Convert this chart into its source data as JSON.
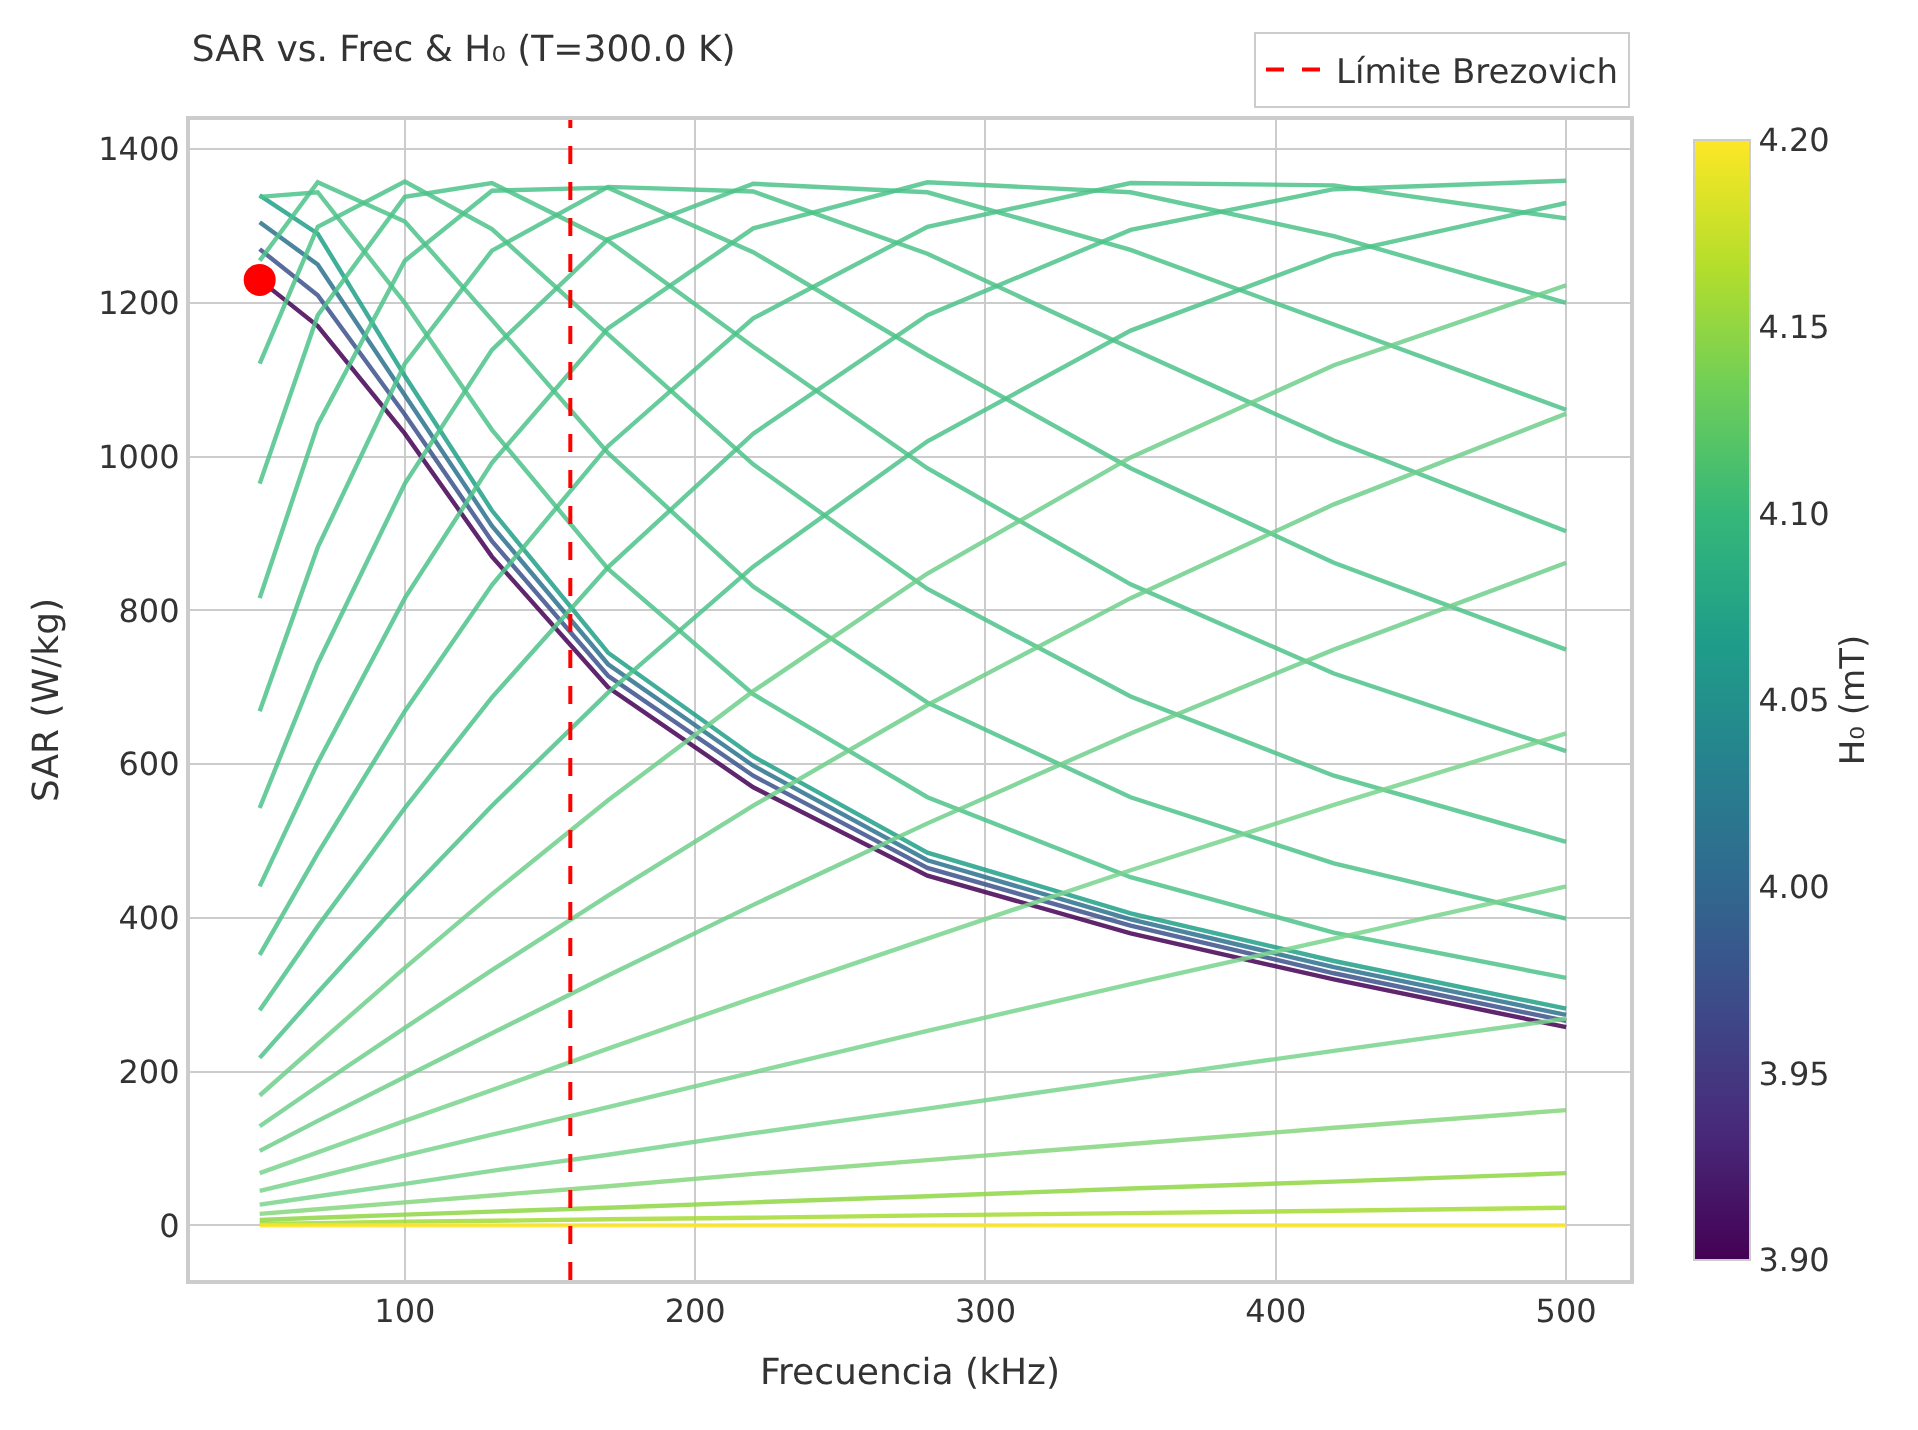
{
  "chart_data": {
    "type": "line",
    "title": "SAR vs. Frec & H₀ (T=300.0 K)",
    "xlabel": "Frecuencia (kHz)",
    "ylabel": "SAR (W/kg)",
    "clabel": "H₀ (mT)",
    "x": [
      50,
      70,
      100,
      130,
      170,
      220,
      280,
      350,
      420,
      500
    ],
    "xlim": [
      26,
      522
    ],
    "xticks": [
      100,
      200,
      300,
      400,
      500
    ],
    "ylim": [
      -71,
      1438
    ],
    "yticks": [
      0,
      200,
      400,
      600,
      800,
      1000,
      1200,
      1400
    ],
    "clim": [
      3.9,
      4.2
    ],
    "cticks": [
      {
        "value": 3.9,
        "label": "3.90"
      },
      3.95,
      {
        "value": 4.0,
        "label": "4.00"
      },
      4.05,
      {
        "value": 4.1,
        "label": "4.10"
      },
      4.15,
      {
        "value": 4.2,
        "label": "4.20"
      }
    ],
    "grid": true,
    "legend": "top right",
    "marker": "none",
    "line_style": "solid",
    "ref_lines": [
      {
        "axis": "x",
        "value": 157,
        "label": "Límite Brezovich",
        "color": "#ff0000",
        "line_style": "dashed"
      }
    ],
    "series": [
      {
        "color": "#1fa088",
        "values": [
          1340,
          1290,
          1105,
          930,
          745,
          610,
          485,
          406,
          344,
          282
        ]
      },
      {
        "color": "#2c728e",
        "values": [
          1305,
          1250,
          1080,
          910,
          730,
          598,
          475,
          398,
          336,
          274
        ]
      },
      {
        "color": "#3b528b",
        "values": [
          1270,
          1210,
          1055,
          890,
          715,
          585,
          465,
          390,
          328,
          266
        ]
      },
      {
        "color": "#440154",
        "values": [
          1230,
          1170,
          1030,
          870,
          700,
          570,
          455,
          380,
          320,
          258
        ]
      },
      {
        "color": "#4ec38a",
        "values": [
          1338,
          1344,
          1200,
          1035,
          854,
          691,
          557,
          453,
          381,
          322
        ]
      },
      {
        "color": "#4ec38a",
        "values": [
          1255,
          1357,
          1306,
          1178,
          1005,
          831,
          680,
          557,
          471,
          399
        ]
      },
      {
        "color": "#4ec38a",
        "values": [
          1121,
          1299,
          1358,
          1296,
          1159,
          990,
          828,
          688,
          585,
          499
        ]
      },
      {
        "color": "#4ec38a",
        "values": [
          965,
          1184,
          1338,
          1356,
          1281,
          1143,
          985,
          834,
          718,
          617
        ]
      },
      {
        "color": "#4ec38a",
        "values": [
          816,
          1042,
          1255,
          1346,
          1350,
          1266,
          1132,
          985,
          862,
          749
        ]
      },
      {
        "color": "#4ec38a",
        "values": [
          669,
          882,
          1121,
          1268,
          1351,
          1345,
          1264,
          1141,
          1021,
          903
        ]
      },
      {
        "color": "#4ec38a",
        "values": [
          543,
          731,
          965,
          1139,
          1283,
          1355,
          1344,
          1269,
          1172,
          1061
        ]
      },
      {
        "color": "#4ec38a",
        "values": [
          441,
          602,
          816,
          992,
          1167,
          1297,
          1357,
          1344,
          1287,
          1200
        ]
      },
      {
        "color": "#4ec38a",
        "values": [
          352,
          484,
          669,
          833,
          1014,
          1180,
          1299,
          1356,
          1353,
          1310
        ]
      },
      {
        "color": "#4ec38a",
        "values": [
          280,
          389,
          543,
          687,
          856,
          1030,
          1184,
          1295,
          1348,
          1359
        ]
      },
      {
        "color": "#4ec38a",
        "values": [
          218,
          303,
          428,
          546,
          693,
          857,
          1020,
          1164,
          1263,
          1330
        ]
      },
      {
        "color": "#6fcf8c",
        "values": [
          169,
          236,
          335,
          431,
          553,
          695,
          848,
          999,
          1119,
          1223
        ]
      },
      {
        "color": "#6fcf8c",
        "values": [
          129,
          181,
          257,
          332,
          429,
          546,
          677,
          816,
          938,
          1056
        ]
      },
      {
        "color": "#6fcf8c",
        "values": [
          97,
          136,
          193,
          250,
          325,
          417,
          523,
          640,
          749,
          862
        ]
      },
      {
        "color": "#7ad48e",
        "values": [
          68,
          95,
          136,
          176,
          230,
          296,
          373,
          462,
          547,
          640
        ]
      },
      {
        "color": "#7ad48e",
        "values": [
          45,
          63,
          91,
          118,
          154,
          199,
          253,
          314,
          373,
          441
        ]
      },
      {
        "color": "#7ad48e",
        "values": [
          27,
          38,
          54,
          71,
          92,
          120,
          152,
          190,
          227,
          269
        ]
      },
      {
        "color": "#86d67e",
        "values": [
          15,
          21,
          30,
          39,
          51,
          67,
          85,
          106,
          127,
          150
        ]
      },
      {
        "color": "#8fd744",
        "values": [
          7,
          10,
          14,
          18,
          23,
          30,
          38,
          48,
          57,
          68
        ]
      },
      {
        "color": "#a5db36",
        "values": [
          2,
          3,
          5,
          6,
          8,
          10,
          13,
          16,
          19,
          23
        ]
      },
      {
        "color": "#fde725",
        "values": [
          0,
          0,
          0,
          0,
          0,
          0,
          0,
          0,
          0,
          0
        ]
      },
      {
        "type": "scatter",
        "marker": "circle",
        "color": "#ff0000",
        "x": [
          50
        ],
        "values": [
          1230
        ]
      }
    ]
  }
}
